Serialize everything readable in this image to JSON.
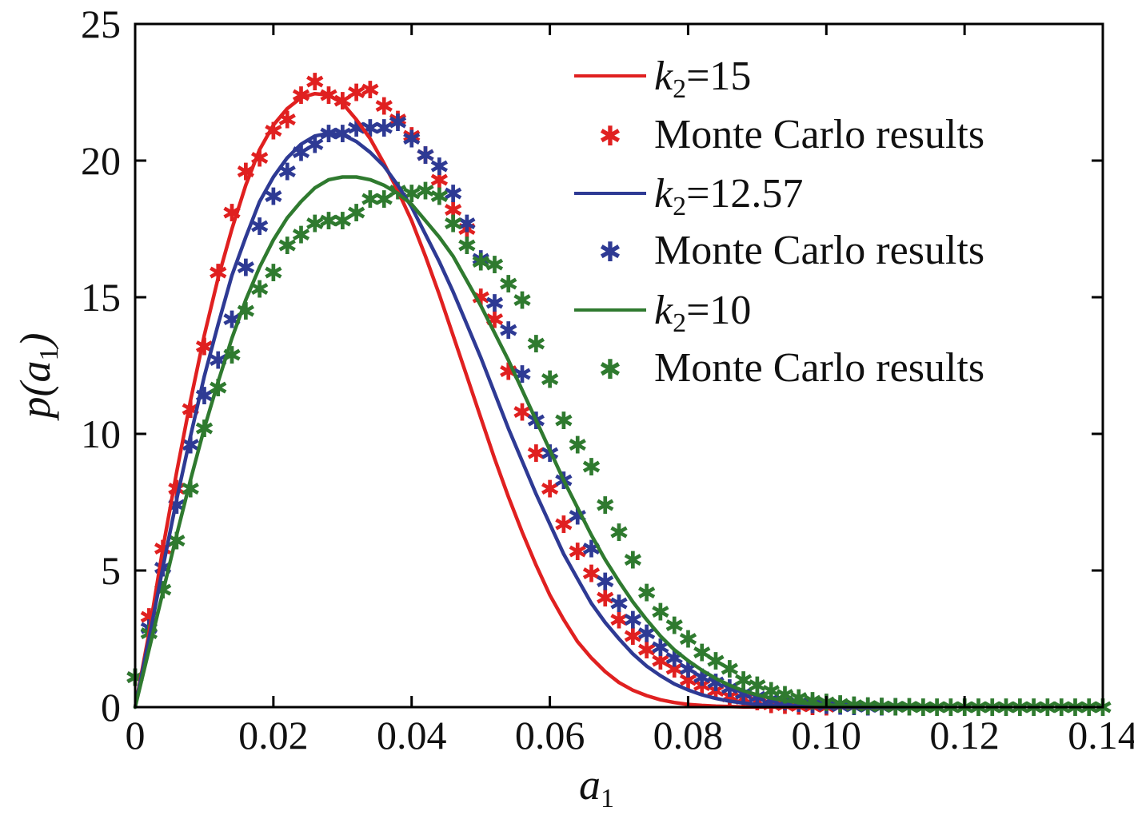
{
  "chart_data": {
    "type": "line",
    "xlabel": {
      "base": "a",
      "sub": "1"
    },
    "ylabel": {
      "pre": "p(",
      "base": "a",
      "sub": "1",
      "post": ")"
    },
    "xlim": [
      0,
      0.14
    ],
    "ylim": [
      0,
      25
    ],
    "xticks": [
      0,
      0.02,
      0.04,
      0.06,
      0.08,
      0.1,
      0.12,
      0.14
    ],
    "xtick_labels": [
      "0",
      "0.02",
      "0.04",
      "0.06",
      "0.08",
      "0.10",
      "0.12",
      "0.14"
    ],
    "yticks": [
      0,
      5,
      10,
      15,
      20,
      25
    ],
    "ytick_labels": [
      "0",
      "5",
      "10",
      "15",
      "20",
      "25"
    ],
    "grid": false,
    "legend_position": "top-right",
    "series": [
      {
        "name": "k2=15",
        "legend": {
          "base": "k",
          "sub": "2",
          "rest": "=15"
        },
        "color": "#e02020",
        "line_x": [
          0,
          0.002,
          0.004,
          0.006,
          0.008,
          0.01,
          0.012,
          0.014,
          0.016,
          0.018,
          0.02,
          0.022,
          0.024,
          0.026,
          0.028,
          0.03,
          0.032,
          0.034,
          0.036,
          0.038,
          0.04,
          0.042,
          0.044,
          0.046,
          0.048,
          0.05,
          0.052,
          0.054,
          0.056,
          0.058,
          0.06,
          0.062,
          0.064,
          0.066,
          0.068,
          0.07,
          0.072,
          0.074,
          0.076,
          0.078,
          0.08,
          0.082,
          0.084,
          0.086,
          0.088,
          0.09,
          0.092,
          0.094,
          0.096,
          0.098,
          0.1,
          0.102,
          0.104,
          0.106,
          0.108,
          0.11
        ],
        "line_y": [
          0,
          2.7,
          5.8,
          8.6,
          11.2,
          13.6,
          15.7,
          17.5,
          19.1,
          20.4,
          21.3,
          21.9,
          22.3,
          22.45,
          22.4,
          22.1,
          21.5,
          20.8,
          19.9,
          18.9,
          17.8,
          16.5,
          15.1,
          13.6,
          12.1,
          10.6,
          9.1,
          7.7,
          6.4,
          5.2,
          4.1,
          3.2,
          2.4,
          1.8,
          1.3,
          0.9,
          0.62,
          0.42,
          0.27,
          0.17,
          0.1,
          0.06,
          0.035,
          0.02,
          0.01,
          0.005,
          0.002,
          0.001,
          0,
          0,
          0,
          0,
          0,
          0,
          0,
          0
        ],
        "mc_x": [
          0,
          0.002,
          0.004,
          0.006,
          0.008,
          0.01,
          0.012,
          0.014,
          0.016,
          0.018,
          0.02,
          0.022,
          0.024,
          0.026,
          0.028,
          0.03,
          0.032,
          0.034,
          0.036,
          0.038,
          0.04,
          0.042,
          0.044,
          0.046,
          0.048,
          0.05,
          0.052,
          0.054,
          0.056,
          0.058,
          0.06,
          0.062,
          0.064,
          0.066,
          0.068,
          0.07,
          0.072,
          0.074,
          0.076,
          0.078,
          0.08,
          0.082,
          0.084,
          0.086,
          0.088,
          0.09,
          0.092,
          0.094,
          0.096,
          0.098,
          0.1
        ],
        "mc_y": [
          1.1,
          3.3,
          5.8,
          8.0,
          10.9,
          13.2,
          15.9,
          18.1,
          19.6,
          20.1,
          21.1,
          21.5,
          22.4,
          22.9,
          22.4,
          22.2,
          22.5,
          22.6,
          22.0,
          21.5,
          20.9,
          20.2,
          19.3,
          18.2,
          17.5,
          15.0,
          14.2,
          12.3,
          10.8,
          9.3,
          8.0,
          6.7,
          5.7,
          4.9,
          4.0,
          3.2,
          2.6,
          2.1,
          1.7,
          1.4,
          1.0,
          0.8,
          0.6,
          0.4,
          0.3,
          0.2,
          0.1,
          0.08,
          0.05,
          0.03,
          0.02
        ]
      },
      {
        "name": "k2=12.57",
        "legend": {
          "base": "k",
          "sub": "2",
          "rest": "=12.57"
        },
        "color": "#2e3a94",
        "line_x": [
          0,
          0.002,
          0.004,
          0.006,
          0.008,
          0.01,
          0.012,
          0.014,
          0.016,
          0.018,
          0.02,
          0.022,
          0.024,
          0.026,
          0.028,
          0.03,
          0.032,
          0.034,
          0.036,
          0.038,
          0.04,
          0.042,
          0.044,
          0.046,
          0.048,
          0.05,
          0.052,
          0.054,
          0.056,
          0.058,
          0.06,
          0.062,
          0.064,
          0.066,
          0.068,
          0.07,
          0.072,
          0.074,
          0.076,
          0.078,
          0.08,
          0.082,
          0.084,
          0.086,
          0.088,
          0.09,
          0.092,
          0.094,
          0.096,
          0.098,
          0.1,
          0.104,
          0.108,
          0.112
        ],
        "line_y": [
          0,
          2.5,
          5.1,
          7.6,
          9.9,
          12.1,
          14.0,
          15.8,
          17.2,
          18.5,
          19.4,
          20.1,
          20.6,
          20.9,
          21.0,
          20.95,
          20.7,
          20.3,
          19.8,
          19.1,
          18.3,
          17.3,
          16.3,
          15.2,
          14.0,
          12.8,
          11.5,
          10.2,
          9.0,
          7.8,
          6.7,
          5.6,
          4.7,
          3.8,
          3.1,
          2.5,
          1.95,
          1.5,
          1.15,
          0.85,
          0.63,
          0.45,
          0.32,
          0.22,
          0.15,
          0.1,
          0.065,
          0.04,
          0.025,
          0.015,
          0.01,
          0.003,
          0.001,
          0
        ]
      },
      {
        "name": "k2=10",
        "legend": {
          "base": "k",
          "sub": "2",
          "rest": "=10"
        },
        "color": "#2f7a2f",
        "line_x": [
          0,
          0.002,
          0.004,
          0.006,
          0.008,
          0.01,
          0.012,
          0.014,
          0.016,
          0.018,
          0.02,
          0.022,
          0.024,
          0.026,
          0.028,
          0.03,
          0.032,
          0.034,
          0.036,
          0.038,
          0.04,
          0.042,
          0.044,
          0.046,
          0.048,
          0.05,
          0.052,
          0.054,
          0.056,
          0.058,
          0.06,
          0.062,
          0.064,
          0.066,
          0.068,
          0.07,
          0.072,
          0.074,
          0.076,
          0.078,
          0.08,
          0.082,
          0.084,
          0.086,
          0.088,
          0.09,
          0.092,
          0.094,
          0.096,
          0.098,
          0.1,
          0.104,
          0.108,
          0.112,
          0.116
        ],
        "line_y": [
          0,
          2.1,
          4.2,
          6.3,
          8.3,
          10.2,
          11.9,
          13.5,
          14.9,
          16.1,
          17.1,
          17.9,
          18.5,
          19.0,
          19.3,
          19.4,
          19.4,
          19.3,
          19.1,
          18.8,
          18.4,
          17.8,
          17.2,
          16.5,
          15.6,
          14.7,
          13.7,
          12.7,
          11.6,
          10.5,
          9.4,
          8.3,
          7.3,
          6.3,
          5.4,
          4.6,
          3.85,
          3.2,
          2.6,
          2.1,
          1.7,
          1.35,
          1.05,
          0.8,
          0.6,
          0.45,
          0.33,
          0.24,
          0.17,
          0.12,
          0.08,
          0.035,
          0.015,
          0.005,
          0
        ]
      }
    ],
    "monte_carlo": {
      "legend_label": "Monte Carlo results",
      "series": [
        {
          "color": "#e02020",
          "x": [
            0,
            0.002,
            0.004,
            0.006,
            0.008,
            0.01,
            0.012,
            0.014,
            0.016,
            0.018,
            0.02,
            0.022,
            0.024,
            0.026,
            0.028,
            0.03,
            0.032,
            0.034,
            0.036,
            0.038,
            0.04,
            0.042,
            0.044,
            0.046,
            0.048,
            0.05,
            0.052,
            0.054,
            0.056,
            0.058,
            0.06,
            0.062,
            0.064,
            0.066,
            0.068,
            0.07,
            0.072,
            0.074,
            0.076,
            0.078,
            0.08,
            0.082,
            0.084,
            0.086,
            0.088,
            0.09,
            0.092,
            0.094,
            0.096,
            0.098,
            0.1
          ],
          "y": [
            1.1,
            3.3,
            5.8,
            8.0,
            10.9,
            13.2,
            15.9,
            18.1,
            19.6,
            20.1,
            21.1,
            21.5,
            22.4,
            22.9,
            22.4,
            22.2,
            22.5,
            22.6,
            22.0,
            21.5,
            20.9,
            20.2,
            19.3,
            18.2,
            17.5,
            15.0,
            14.2,
            12.3,
            10.8,
            9.3,
            8.0,
            6.7,
            5.7,
            4.9,
            4.0,
            3.2,
            2.6,
            2.1,
            1.7,
            1.4,
            1.0,
            0.8,
            0.6,
            0.4,
            0.3,
            0.2,
            0.1,
            0.08,
            0.05,
            0.03,
            0.02
          ]
        },
        {
          "color": "#2e3a94",
          "x": [
            0,
            0.002,
            0.004,
            0.006,
            0.008,
            0.01,
            0.012,
            0.014,
            0.016,
            0.018,
            0.02,
            0.022,
            0.024,
            0.026,
            0.028,
            0.03,
            0.032,
            0.034,
            0.036,
            0.038,
            0.04,
            0.042,
            0.044,
            0.046,
            0.048,
            0.05,
            0.052,
            0.054,
            0.056,
            0.058,
            0.06,
            0.062,
            0.064,
            0.066,
            0.068,
            0.07,
            0.072,
            0.074,
            0.076,
            0.078,
            0.08,
            0.082,
            0.084,
            0.086,
            0.088,
            0.09,
            0.092,
            0.094,
            0.096,
            0.098,
            0.1,
            0.102,
            0.104,
            0.106,
            0.108,
            0.11
          ],
          "y": [
            1.1,
            2.9,
            5.1,
            7.4,
            9.6,
            11.4,
            12.7,
            14.2,
            16.1,
            17.6,
            18.7,
            19.6,
            20.3,
            20.6,
            21.0,
            21.0,
            21.2,
            21.2,
            21.2,
            21.4,
            20.8,
            20.2,
            19.8,
            18.8,
            17.7,
            16.4,
            14.8,
            13.8,
            12.2,
            10.5,
            9.3,
            8.3,
            7.0,
            5.8,
            4.6,
            3.8,
            3.2,
            2.7,
            2.2,
            1.8,
            1.4,
            1.1,
            0.9,
            0.7,
            0.5,
            0.38,
            0.28,
            0.2,
            0.14,
            0.1,
            0.07,
            0.05,
            0.03,
            0.02,
            0.01,
            0.01
          ]
        },
        {
          "color": "#2f7a2f",
          "x": [
            0,
            0.002,
            0.004,
            0.006,
            0.008,
            0.01,
            0.012,
            0.014,
            0.016,
            0.018,
            0.02,
            0.022,
            0.024,
            0.026,
            0.028,
            0.03,
            0.032,
            0.034,
            0.036,
            0.038,
            0.04,
            0.042,
            0.044,
            0.046,
            0.048,
            0.05,
            0.052,
            0.054,
            0.056,
            0.058,
            0.06,
            0.062,
            0.064,
            0.066,
            0.068,
            0.07,
            0.072,
            0.074,
            0.076,
            0.078,
            0.08,
            0.082,
            0.084,
            0.086,
            0.088,
            0.09,
            0.092,
            0.094,
            0.096,
            0.098,
            0.1,
            0.102,
            0.104,
            0.106,
            0.108,
            0.11,
            0.112,
            0.114,
            0.116,
            0.118,
            0.12,
            0.122,
            0.124,
            0.126,
            0.128,
            0.13,
            0.132,
            0.134,
            0.136,
            0.138,
            0.14
          ],
          "y": [
            1.1,
            2.7,
            4.3,
            6.1,
            8.0,
            10.2,
            11.7,
            12.9,
            14.5,
            15.3,
            15.9,
            16.9,
            17.3,
            17.7,
            17.8,
            17.8,
            18.1,
            18.6,
            18.6,
            18.9,
            18.8,
            18.9,
            18.7,
            17.7,
            16.9,
            16.3,
            16.2,
            15.5,
            14.9,
            13.3,
            12.0,
            10.5,
            9.6,
            8.8,
            7.4,
            6.4,
            5.4,
            4.2,
            3.5,
            3.0,
            2.5,
            2.0,
            1.7,
            1.4,
            1.0,
            0.8,
            0.6,
            0.45,
            0.33,
            0.24,
            0.17,
            0.12,
            0.08,
            0.05,
            0.03,
            0.02,
            0.01,
            0,
            0,
            0,
            0,
            0,
            0,
            0,
            0,
            0,
            0,
            0,
            0,
            0,
            0
          ]
        }
      ]
    }
  }
}
